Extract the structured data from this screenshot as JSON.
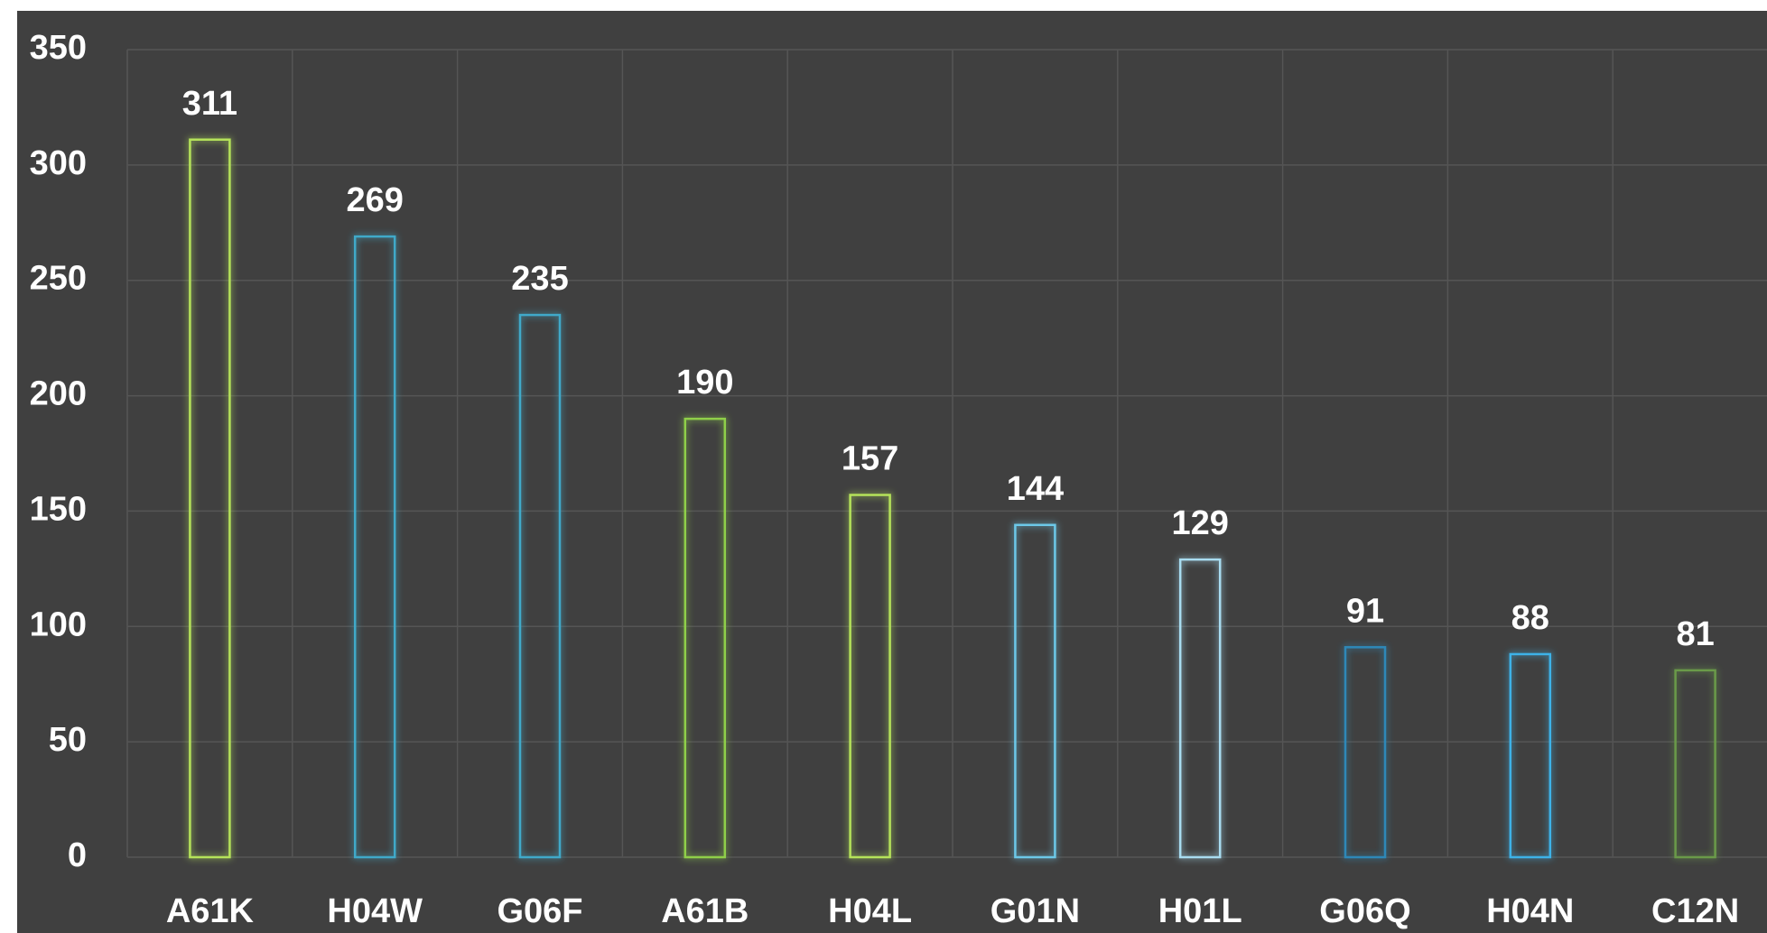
{
  "chart_data": {
    "type": "bar",
    "categories": [
      "A61K",
      "H04W",
      "G06F",
      "A61B",
      "H04L",
      "G01N",
      "H01L",
      "G06Q",
      "H04N",
      "C12N"
    ],
    "values": [
      311,
      269,
      235,
      190,
      157,
      144,
      129,
      91,
      88,
      81
    ],
    "colors": [
      "#b5e35a",
      "#3fa9c9",
      "#3fa9c9",
      "#8fcf4a",
      "#b5e35a",
      "#6cc8e8",
      "#a8dcf0",
      "#2e88b8",
      "#3eb2e8",
      "#6a9a4a"
    ],
    "ylim": [
      0,
      350
    ],
    "yticks": [
      0,
      50,
      100,
      150,
      200,
      250,
      300,
      350
    ],
    "grid": true
  }
}
